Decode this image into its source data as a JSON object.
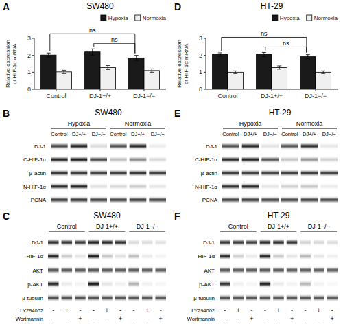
{
  "chart_data": [
    {
      "type": "bar",
      "panel_label": "A",
      "title": "SW480",
      "categories": [
        "Control",
        "DJ-1+/+",
        "DJ-1−/−"
      ],
      "ylabel": "Relative expression\nof HIF-1α mRNA",
      "ylim": [
        0,
        3
      ],
      "yticks": [
        0,
        1,
        2,
        3
      ],
      "grid": false,
      "legend": "upper right",
      "series": [
        {
          "name": "Hypoxia",
          "color": "#1a1a1a",
          "values": [
            2.02,
            2.2,
            1.85
          ],
          "errors": [
            0.12,
            0.18,
            0.15
          ]
        },
        {
          "name": "Normoxia",
          "color": "#f0f0f0",
          "values": [
            1.02,
            1.28,
            1.1
          ],
          "errors": [
            0.1,
            0.12,
            0.1
          ]
        }
      ],
      "annotations": [
        {
          "text": "ns",
          "series": "Hypoxia",
          "between": [
            "Control",
            "DJ-1−/−"
          ]
        },
        {
          "text": "ns",
          "series": "Hypoxia",
          "between": [
            "DJ-1+/+",
            "DJ-1−/−"
          ]
        }
      ]
    },
    {
      "type": "bar",
      "panel_label": "D",
      "title": "HT-29",
      "categories": [
        "Control",
        "DJ-1+/+",
        "DJ-1−/−"
      ],
      "ylabel": "Relative expression\nof HIF-1α mRNA",
      "ylim": [
        0,
        3
      ],
      "yticks": [
        0,
        1,
        2,
        3
      ],
      "grid": false,
      "legend": "upper right",
      "series": [
        {
          "name": "Hypoxia",
          "color": "#1a1a1a",
          "values": [
            2.05,
            2.05,
            1.92
          ],
          "errors": [
            0.1,
            0.12,
            0.12
          ]
        },
        {
          "name": "Normoxia",
          "color": "#f0f0f0",
          "values": [
            1.0,
            1.28,
            1.0
          ],
          "errors": [
            0.08,
            0.1,
            0.08
          ]
        }
      ],
      "annotations": [
        {
          "text": "ns",
          "series": "Hypoxia",
          "between": [
            "Control",
            "DJ-1−/−"
          ]
        },
        {
          "text": "ns",
          "series": "Hypoxia",
          "between": [
            "DJ-1+/+",
            "DJ-1−/−"
          ]
        }
      ]
    },
    {
      "type": "heatmap",
      "panel_label": "B",
      "title": "SW480",
      "rows": [
        "DJ-1",
        "C-HIF-1α",
        "β-actin",
        "N-HIF-1α",
        "PCNA"
      ],
      "column_groups": [
        "Hypoxia",
        "Normoxia"
      ],
      "columns": [
        "Control",
        "DJ+/+",
        "DJ−/−",
        "Control",
        "DJ+/+",
        "DJ−/−"
      ],
      "cells": [
        [
          0.75,
          0.9,
          0.15,
          0.72,
          0.88,
          0.08
        ],
        [
          0.85,
          0.88,
          0.7,
          0.25,
          0.45,
          0.15
        ],
        [
          0.8,
          0.78,
          0.75,
          0.77,
          0.8,
          0.76
        ],
        [
          0.82,
          0.85,
          0.12,
          0.15,
          0.2,
          0.1
        ],
        [
          0.78,
          0.8,
          0.76,
          0.75,
          0.78,
          0.74
        ]
      ]
    },
    {
      "type": "heatmap",
      "panel_label": "E",
      "title": "HT-29",
      "rows": [
        "DJ-1",
        "C-HIF-1α",
        "β-actin",
        "N-HIF-1α",
        "PCNA"
      ],
      "column_groups": [
        "Hypoxia",
        "Normoxia"
      ],
      "columns": [
        "Control",
        "DJ+/+",
        "DJ−/−",
        "Control",
        "DJ+/+",
        "DJ−/−"
      ],
      "cells": [
        [
          0.72,
          0.88,
          0.12,
          0.7,
          0.85,
          0.1
        ],
        [
          0.82,
          0.85,
          0.65,
          0.22,
          0.4,
          0.18
        ],
        [
          0.78,
          0.76,
          0.74,
          0.76,
          0.78,
          0.75
        ],
        [
          0.8,
          0.83,
          0.1,
          0.18,
          0.22,
          0.08
        ],
        [
          0.76,
          0.78,
          0.74,
          0.74,
          0.76,
          0.73
        ]
      ]
    },
    {
      "type": "heatmap",
      "panel_label": "C",
      "title": "SW480",
      "rows": [
        "DJ-1",
        "HIF-1α",
        "AKT",
        "p-AKT",
        "β-tubulin"
      ],
      "column_groups": [
        "Control",
        "DJ-1+/+",
        "DJ-1−/−"
      ],
      "cells": [
        [
          0.82,
          0.8,
          0.78,
          0.88,
          0.85,
          0.83,
          0.15,
          0.14,
          0.12
        ],
        [
          0.85,
          0.2,
          0.1,
          0.88,
          0.22,
          0.12,
          0.25,
          0.08,
          0.05
        ],
        [
          0.72,
          0.7,
          0.71,
          0.73,
          0.71,
          0.7,
          0.7,
          0.69,
          0.68
        ],
        [
          0.83,
          0.08,
          0.05,
          0.9,
          0.1,
          0.06,
          0.3,
          0.06,
          0.04
        ],
        [
          0.7,
          0.68,
          0.69,
          0.69,
          0.67,
          0.68,
          0.68,
          0.67,
          0.66
        ]
      ],
      "treatments": [
        {
          "label": "LY294002",
          "values": [
            "-",
            "+",
            "-",
            "-",
            "+",
            "-",
            "-",
            "+",
            "-"
          ]
        },
        {
          "label": "Wortmannin",
          "values": [
            "-",
            "-",
            "+",
            "-",
            "-",
            "+",
            "-",
            "-",
            "+"
          ]
        }
      ]
    },
    {
      "type": "heatmap",
      "panel_label": "F",
      "title": "HT-29",
      "rows": [
        "DJ-1",
        "HIF-1α",
        "AKT",
        "p-AKT",
        "β-tubulin"
      ],
      "column_groups": [
        "Control",
        "DJ-1+/+",
        "DJ-1−/−"
      ],
      "cells": [
        [
          0.8,
          0.78,
          0.76,
          0.85,
          0.83,
          0.81,
          0.18,
          0.16,
          0.14
        ],
        [
          0.83,
          0.18,
          0.08,
          0.85,
          0.2,
          0.1,
          0.28,
          0.1,
          0.06
        ],
        [
          0.71,
          0.69,
          0.7,
          0.72,
          0.7,
          0.69,
          0.69,
          0.68,
          0.67
        ],
        [
          0.8,
          0.06,
          0.04,
          0.88,
          0.08,
          0.05,
          0.28,
          0.05,
          0.03
        ],
        [
          0.69,
          0.67,
          0.68,
          0.68,
          0.66,
          0.67,
          0.67,
          0.66,
          0.65
        ]
      ],
      "treatments": [
        {
          "label": "LY294002",
          "values": [
            "-",
            "+",
            "-",
            "-",
            "+",
            "-",
            "-",
            "+",
            "-"
          ]
        },
        {
          "label": "Wortmannin",
          "values": [
            "-",
            "-",
            "+",
            "-",
            "-",
            "+",
            "-",
            "-",
            "+"
          ]
        }
      ]
    }
  ]
}
